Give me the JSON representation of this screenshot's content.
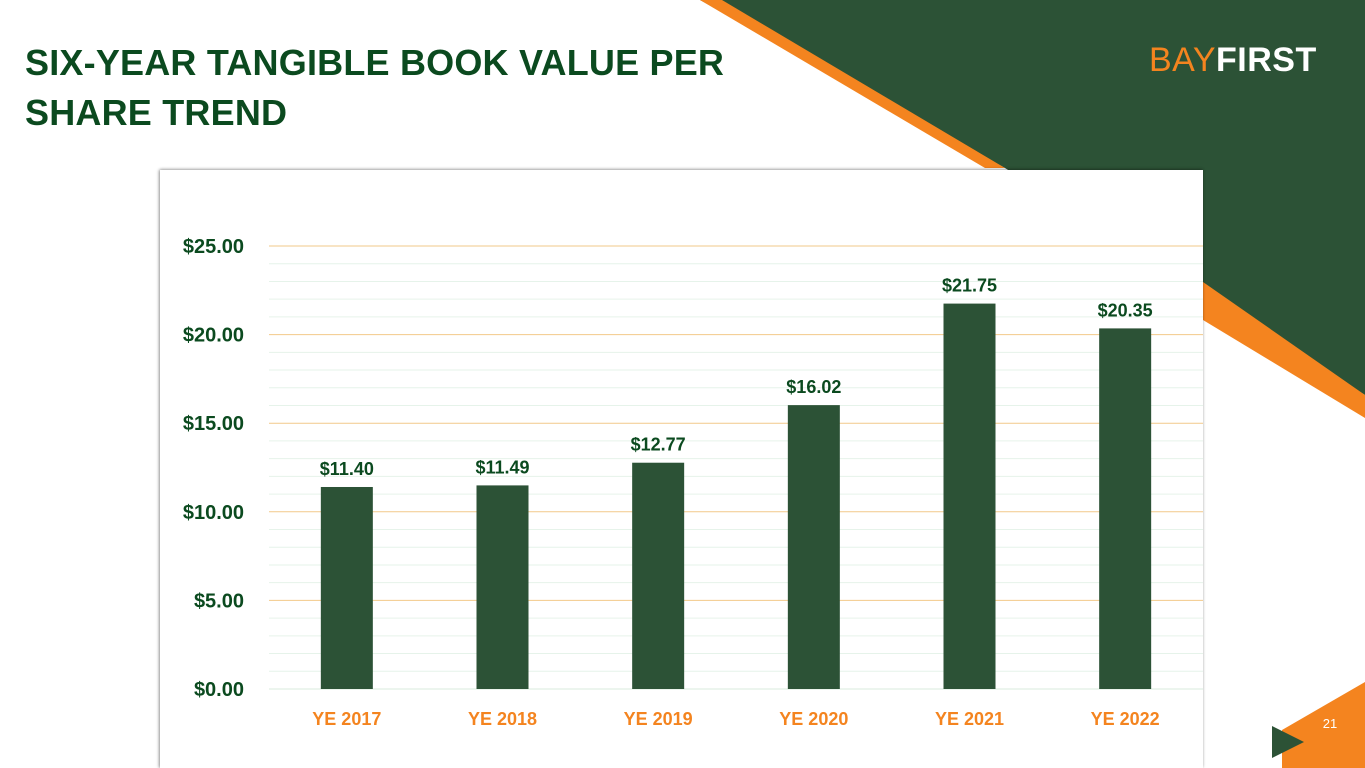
{
  "slide": {
    "title": "SIX-YEAR TANGIBLE BOOK VALUE PER SHARE TREND",
    "page_number": "21"
  },
  "logo": {
    "part1": "BAY",
    "part2": "FIRST"
  },
  "colors": {
    "brand_green": "#2c5236",
    "title_green": "#0b4a1f",
    "accent_orange": "#f4841f",
    "gridline_major": "#f2c98a",
    "gridline_minor": "#e6f3ea"
  },
  "icons": {
    "next_slide": "play-triangle-icon"
  },
  "chart_data": {
    "type": "bar",
    "categories": [
      "YE 2017",
      "YE 2018",
      "YE 2019",
      "YE 2020",
      "YE 2021",
      "YE 2022"
    ],
    "values": [
      11.4,
      11.49,
      12.77,
      16.02,
      21.75,
      20.35
    ],
    "data_labels": [
      "$11.40",
      "$11.49",
      "$12.77",
      "$16.02",
      "$21.75",
      "$20.35"
    ],
    "y_ticks": [
      0,
      5,
      10,
      15,
      20,
      25
    ],
    "y_tick_labels": [
      "$0.00",
      "$5.00",
      "$10.00",
      "$15.00",
      "$20.00",
      "$25.00"
    ],
    "ylim": [
      0,
      25
    ],
    "grid": true,
    "legend": "none"
  }
}
